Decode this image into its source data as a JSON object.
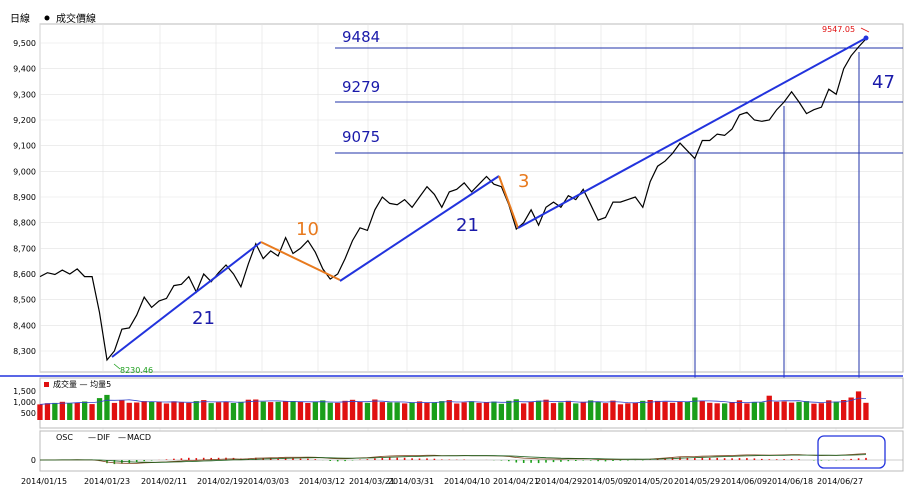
{
  "price_panel": {
    "label": "日線",
    "legend": "成交價線",
    "high_label": "9547.05",
    "low_label": "8230.46",
    "levels": [
      {
        "label": "9484",
        "value": 9484
      },
      {
        "label": "9279",
        "value": 9279
      },
      {
        "label": "9075",
        "value": 9075
      }
    ],
    "counts": [
      {
        "label": "21",
        "color": "#1a1aaa"
      },
      {
        "label": "10",
        "color": "#e87a1e"
      },
      {
        "label": "21",
        "color": "#1a1aaa"
      },
      {
        "label": "3",
        "color": "#e87a1e"
      },
      {
        "label": "47",
        "color": "#1a1aaa"
      }
    ]
  },
  "volume_panel": {
    "legend": "成交量 — 均量5",
    "ticks": [
      "1,500",
      "1,000",
      "500"
    ]
  },
  "macd_panel": {
    "osc": "OSC",
    "dif": "DIF",
    "macd": "MACD",
    "zero": "0"
  },
  "colors": {
    "price": "#000000",
    "trend": "#2233dd",
    "counter": "#e87a1e",
    "level": "#2233aa",
    "up": "#e01010",
    "down": "#1a9e1a"
  },
  "chart_data": {
    "type": "line",
    "ylim": [
      8230,
      9550
    ],
    "y_ticks": [
      "8,300",
      "8,400",
      "8,500",
      "8,600",
      "8,700",
      "8,800",
      "8,900",
      "9,000",
      "9,100",
      "9,200",
      "9,300",
      "9,400",
      "9,500"
    ],
    "x_ticks": [
      "2014/01/15",
      "2014/01/23",
      "2014/02/11",
      "2014/02/19",
      "2014/03/03",
      "2014/03/12",
      "2014/03/21",
      "2014/03/31",
      "2014/04/10",
      "2014/04/21",
      "2014/04/29",
      "2014/05/09",
      "2014/05/20",
      "2014/05/29",
      "2014/06/09",
      "2014/06/18",
      "2014/06/27"
    ],
    "x": [
      "01/15",
      "01/16",
      "01/17",
      "01/20",
      "01/21",
      "01/22",
      "01/23",
      "01/24",
      "01/27",
      "01/28",
      "02/05",
      "02/06",
      "02/07",
      "02/10",
      "02/11",
      "02/12",
      "02/13",
      "02/14",
      "02/17",
      "02/18",
      "02/19",
      "02/20",
      "02/21",
      "02/24",
      "02/25",
      "02/26",
      "02/27",
      "03/03",
      "03/04",
      "03/05",
      "03/06",
      "03/07",
      "03/10",
      "03/11",
      "03/12",
      "03/13",
      "03/14",
      "03/17",
      "03/18",
      "03/19",
      "03/20",
      "03/21",
      "03/24",
      "03/25",
      "03/26",
      "03/27",
      "03/28",
      "03/31",
      "04/01",
      "04/02",
      "04/03",
      "04/07",
      "04/08",
      "04/09",
      "04/10",
      "04/11",
      "04/14",
      "04/15",
      "04/16",
      "04/17",
      "04/18",
      "04/21",
      "04/22",
      "04/23",
      "04/24",
      "04/25",
      "04/28",
      "04/29",
      "04/30",
      "05/02",
      "05/05",
      "05/06",
      "05/07",
      "05/08",
      "05/09",
      "05/12",
      "05/13",
      "05/14",
      "05/15",
      "05/16",
      "05/19",
      "05/20",
      "05/21",
      "05/22",
      "05/23",
      "05/26",
      "05/27",
      "05/28",
      "05/29",
      "05/30",
      "06/03",
      "06/04",
      "06/05",
      "06/06",
      "06/09",
      "06/10",
      "06/11",
      "06/12",
      "06/13",
      "06/16",
      "06/17",
      "06/18",
      "06/19",
      "06/20",
      "06/23",
      "06/24",
      "06/25",
      "06/26",
      "06/27",
      "06/30",
      "07/01",
      "07/02"
    ],
    "series": [
      {
        "values": [
          8590,
          8605,
          8598,
          8615,
          8600,
          8620,
          8590,
          8590,
          8450,
          8265,
          8300,
          8385,
          8390,
          8440,
          8510,
          8470,
          8495,
          8505,
          8555,
          8560,
          8590,
          8530,
          8600,
          8570,
          8605,
          8635,
          8600,
          8550,
          8640,
          8718,
          8660,
          8690,
          8670,
          8742,
          8680,
          8700,
          8730,
          8685,
          8620,
          8580,
          8600,
          8660,
          8730,
          8780,
          8770,
          8850,
          8900,
          8875,
          8870,
          8890,
          8860,
          8900,
          8940,
          8910,
          8860,
          8920,
          8930,
          8955,
          8920,
          8950,
          8980,
          8950,
          8940,
          8870,
          8775,
          8800,
          8850,
          8790,
          8860,
          8880,
          8860,
          8905,
          8890,
          8930,
          8870,
          8810,
          8820,
          8880,
          8880,
          8890,
          8900,
          8860,
          8960,
          9020,
          9040,
          9070,
          9110,
          9080,
          9050,
          9120,
          9120,
          9145,
          9140,
          9165,
          9220,
          9230,
          9200,
          9195,
          9200,
          9240,
          9270,
          9310,
          9270,
          9225,
          9240,
          9250,
          9320,
          9300,
          9400,
          9450,
          9485,
          9516
        ]
      }
    ]
  }
}
